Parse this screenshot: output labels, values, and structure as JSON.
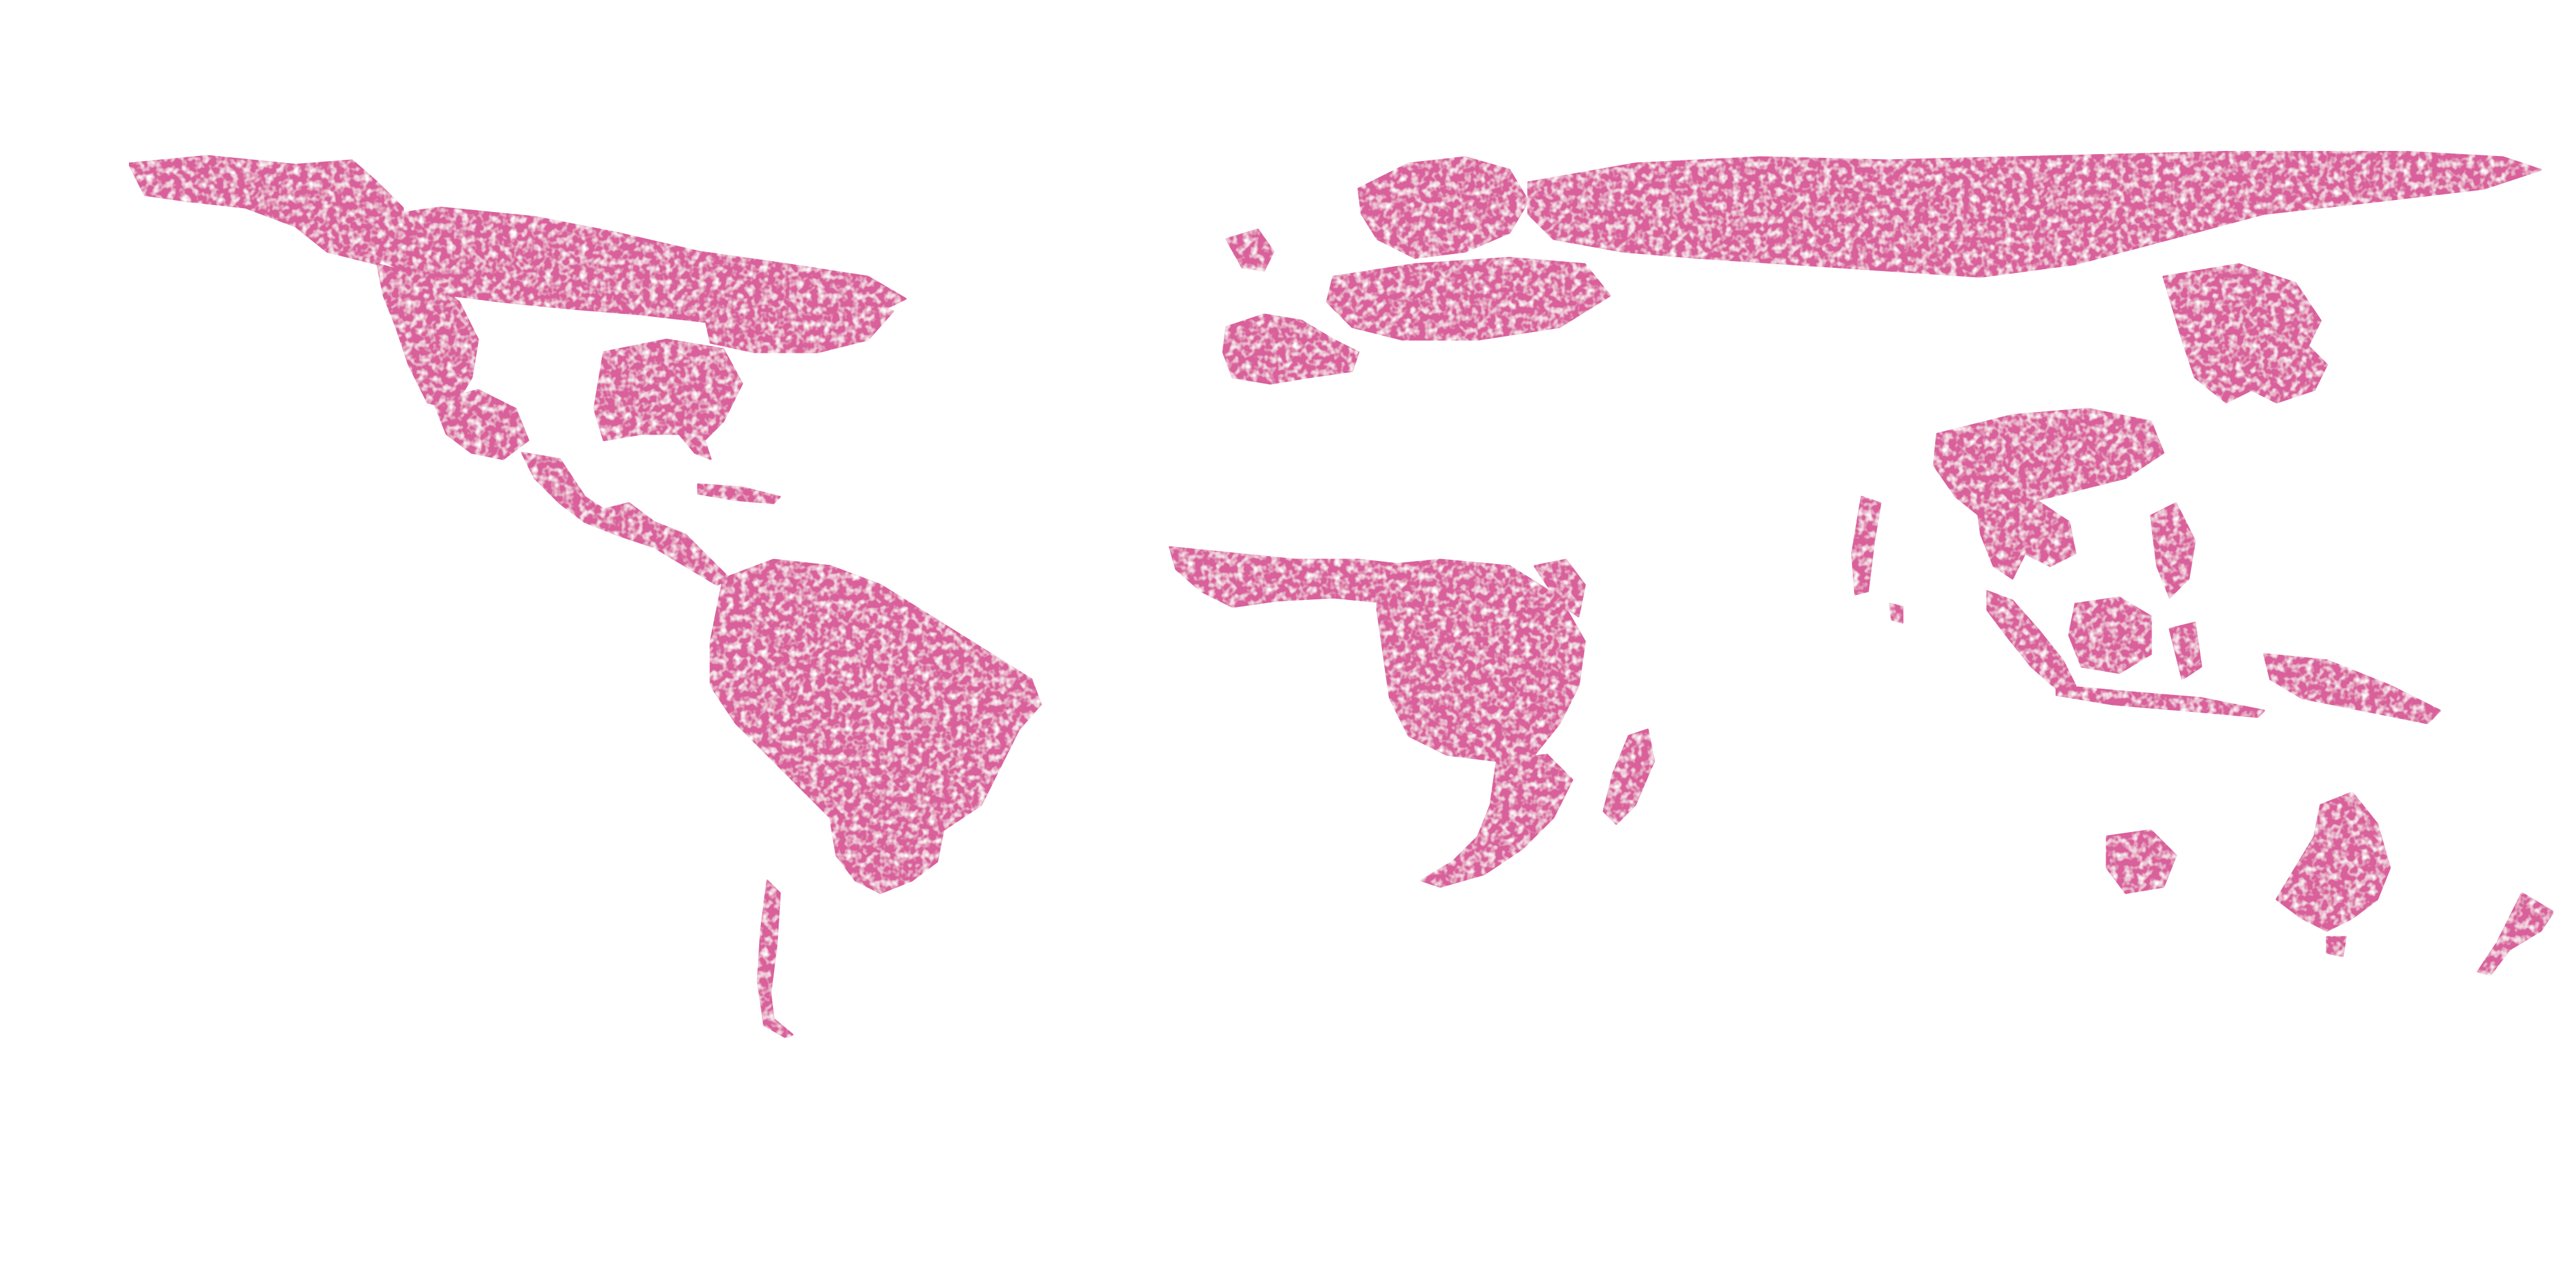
{
  "map": {
    "projection": "equirectangular",
    "background_color": "#ffffff",
    "layer": {
      "fill_color": "#d9609b",
      "extent": "global"
    }
  }
}
